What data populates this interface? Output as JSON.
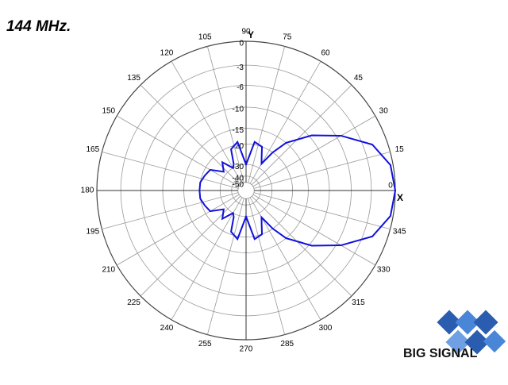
{
  "chart_data": {
    "type": "polar",
    "title": "144 MHz.",
    "x_axis_label": "X",
    "y_axis_label": "Y",
    "logo": "BIG SIGNAL",
    "radial_scale": "arrl-log",
    "color": "#1010e0",
    "grid": true,
    "angle_ticks": [
      0,
      15,
      30,
      45,
      60,
      75,
      90,
      105,
      120,
      135,
      150,
      165,
      180,
      195,
      210,
      225,
      240,
      255,
      270,
      285,
      300,
      315,
      330,
      345
    ],
    "rlim": [
      -50,
      0
    ],
    "rticks": [
      0,
      -3,
      -6,
      -10,
      -15,
      -20,
      -30,
      -40,
      -50
    ],
    "x": [
      0,
      10,
      20,
      30,
      40,
      50,
      55,
      60,
      65,
      70,
      80,
      90,
      100,
      110,
      115,
      120,
      130,
      140,
      150,
      160,
      170,
      180,
      190,
      200,
      210,
      220,
      230,
      240,
      245,
      250,
      260,
      270,
      280,
      290,
      295,
      300,
      305,
      310,
      320,
      330,
      340,
      350
    ],
    "values": [
      0,
      -0.3,
      -1.8,
      -5.3,
      -9.5,
      -15,
      -20,
      -27,
      -24,
      -20,
      -19,
      -30,
      -19,
      -21,
      -28,
      -30,
      -24,
      -28,
      -22,
      -21,
      -20,
      -20,
      -20,
      -21,
      -22,
      -28,
      -24,
      -30,
      -28,
      -21,
      -19,
      -30,
      -19,
      -20,
      -24,
      -27,
      -20,
      -15,
      -9.5,
      -5.3,
      -1.8,
      -0.3
    ]
  }
}
